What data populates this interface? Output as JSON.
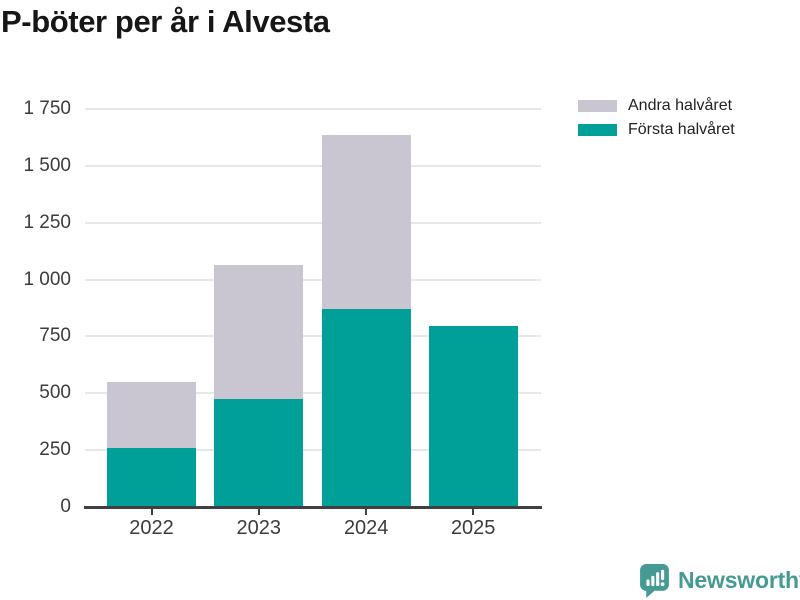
{
  "chart_data": {
    "type": "bar",
    "stacked": true,
    "title": "P-böter per år i Alvesta",
    "categories": [
      "2022",
      "2023",
      "2024",
      "2025"
    ],
    "series": [
      {
        "name": "Första halvåret",
        "color": "#00A099",
        "values": [
          260,
          475,
          870,
          795
        ]
      },
      {
        "name": "Andra halvåret",
        "color": "#C9C6D1",
        "values": [
          290,
          590,
          765,
          0
        ]
      }
    ],
    "xlabel": "",
    "ylabel": "",
    "ylim": [
      0,
      1750
    ],
    "yticks": [
      0,
      250,
      500,
      750,
      1000,
      1250,
      1500,
      1750
    ],
    "ytick_labels": [
      "0",
      "250",
      "500",
      "750",
      "1 000",
      "1 250",
      "1 500",
      "1 750"
    ],
    "grid": true,
    "legend_position": "top-right"
  },
  "legend": {
    "items": [
      {
        "label": "Andra halvåret",
        "color": "#C9C6D1"
      },
      {
        "label": "Första halvåret",
        "color": "#00A099"
      }
    ]
  },
  "branding": {
    "logo_text": "Newsworthy",
    "logo_color": "#459A94",
    "logo_icon": "bar-chart-speech-bubble-icon"
  },
  "colors": {
    "first_half": "#00A099",
    "second_half": "#C9C6D1",
    "axis": "#404040",
    "gridline": "#E7E7E7",
    "tick_text": "#3C3C3C",
    "title_text": "#161616"
  }
}
